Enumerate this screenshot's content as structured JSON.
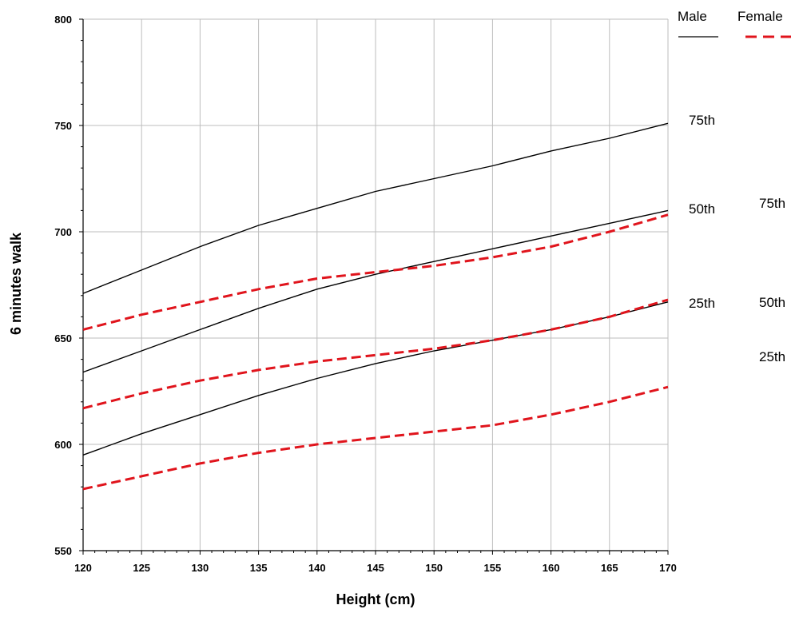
{
  "chart_data": {
    "type": "line",
    "xlabel": "Height (cm)",
    "ylabel": "6 minutes walk",
    "xlim": [
      120,
      170
    ],
    "ylim": [
      550,
      800
    ],
    "xticks": [
      120,
      125,
      130,
      135,
      140,
      145,
      150,
      155,
      160,
      165,
      170
    ],
    "yticks": [
      550,
      600,
      650,
      700,
      750,
      800
    ],
    "grid": true,
    "legend": {
      "placement": "top-right",
      "entries": [
        {
          "label": "Male",
          "style": "solid",
          "color": "#000000"
        },
        {
          "label": "Female",
          "style": "dashed",
          "color": "#e0141c"
        }
      ]
    },
    "x": [
      120,
      125,
      130,
      135,
      140,
      145,
      150,
      155,
      160,
      165,
      170
    ],
    "series": [
      {
        "group": "Male",
        "percentile": "75th",
        "color": "#000000",
        "style": "solid",
        "values": [
          671,
          682,
          693,
          703,
          711,
          719,
          725,
          731,
          738,
          744,
          751
        ]
      },
      {
        "group": "Male",
        "percentile": "50th",
        "color": "#000000",
        "style": "solid",
        "values": [
          634,
          644,
          654,
          664,
          673,
          680,
          686,
          692,
          698,
          704,
          710
        ]
      },
      {
        "group": "Male",
        "percentile": "25th",
        "color": "#000000",
        "style": "solid",
        "values": [
          595,
          605,
          614,
          623,
          631,
          638,
          644,
          649,
          654,
          660,
          667
        ]
      },
      {
        "group": "Female",
        "percentile": "75th",
        "color": "#e0141c",
        "style": "dashed",
        "values": [
          654,
          661,
          667,
          673,
          678,
          681,
          684,
          688,
          693,
          700,
          708
        ]
      },
      {
        "group": "Female",
        "percentile": "50th",
        "color": "#e0141c",
        "style": "dashed",
        "values": [
          617,
          624,
          630,
          635,
          639,
          642,
          645,
          649,
          654,
          660,
          668
        ]
      },
      {
        "group": "Female",
        "percentile": "25th",
        "color": "#e0141c",
        "style": "dashed",
        "values": [
          579,
          585,
          591,
          596,
          600,
          603,
          606,
          609,
          614,
          620,
          627
        ]
      }
    ],
    "labels": {
      "male": [
        "75th",
        "50th",
        "25th"
      ],
      "female": [
        "75th",
        "50th",
        "25th"
      ]
    }
  }
}
